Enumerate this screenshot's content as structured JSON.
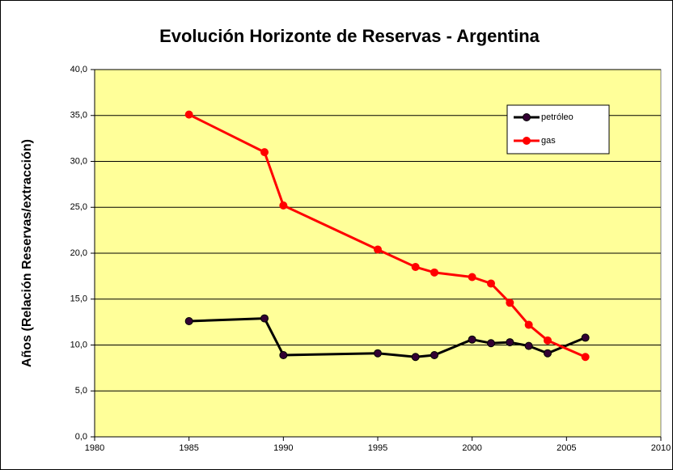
{
  "chart_data": {
    "type": "line",
    "title": "Evolución Horizonte de Reservas - Argentina",
    "y_label": "Años (Relación Reservas/extracción)",
    "x": [
      1985,
      1989,
      1990,
      1995,
      1997,
      1998,
      2000,
      2001,
      2002,
      2003,
      2004,
      2006
    ],
    "series": [
      {
        "name": "petróleo",
        "color": "#000000",
        "marker_color": "#330033",
        "values": [
          12.6,
          12.9,
          8.9,
          9.1,
          8.7,
          8.9,
          10.6,
          10.2,
          10.3,
          9.9,
          9.1,
          10.8
        ]
      },
      {
        "name": "gas",
        "color": "#ff0000",
        "marker_color": "#ff0000",
        "values": [
          35.1,
          31.0,
          25.2,
          20.4,
          18.5,
          17.9,
          17.4,
          16.7,
          14.6,
          12.2,
          10.5,
          8.7
        ]
      }
    ],
    "xlim": [
      1980,
      2010
    ],
    "xticks": [
      1980,
      1985,
      1990,
      1995,
      2000,
      2005,
      2010
    ],
    "ylim": [
      0,
      40
    ],
    "yticks": [
      {
        "value": 0,
        "label": "0,0"
      },
      {
        "value": 5,
        "label": "5,0"
      },
      {
        "value": 10,
        "label": "10,0"
      },
      {
        "value": 15,
        "label": "15,0"
      },
      {
        "value": 20,
        "label": "20,0"
      },
      {
        "value": 25,
        "label": "25,0"
      },
      {
        "value": 30,
        "label": "30,0"
      },
      {
        "value": 35,
        "label": "35,0"
      },
      {
        "value": 40,
        "label": "40,0"
      }
    ],
    "grid": true,
    "legend": "upper right",
    "plot_background": "#ffff99"
  }
}
